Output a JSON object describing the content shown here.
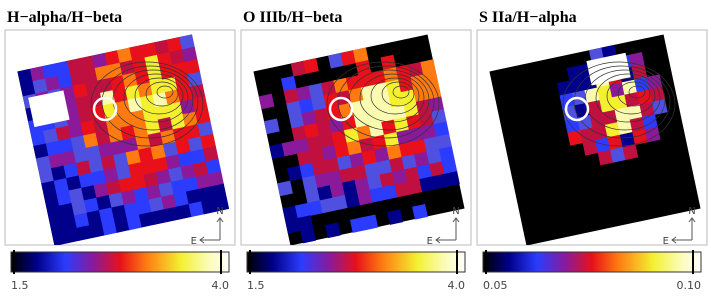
{
  "panels": [
    {
      "title": "H−alpha/H−beta",
      "colorbar": {
        "min": "1.5",
        "max": "4.0"
      },
      "compass": {
        "north": "N",
        "east": "E"
      }
    },
    {
      "title": "O IIIb/H−beta",
      "colorbar": {
        "min": "1.5",
        "max": "4.0"
      },
      "compass": {
        "north": "N",
        "east": "E"
      }
    },
    {
      "title": "S IIa/H−alpha",
      "colorbar": {
        "min": "0.05",
        "max": "0.10"
      },
      "compass": {
        "north": "N",
        "east": "E"
      }
    }
  ]
}
